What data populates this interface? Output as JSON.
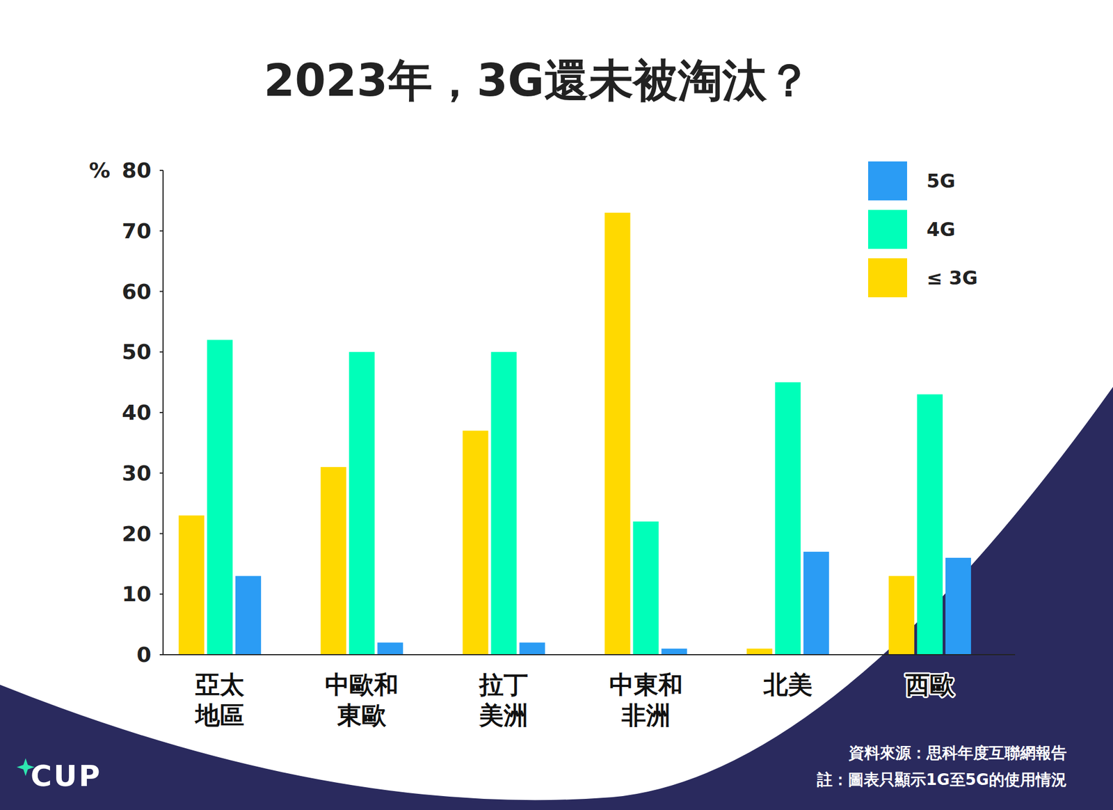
{
  "chart_data": {
    "type": "bar",
    "title": "2023年，3G還未被淘汰？",
    "y_label": "%",
    "categories": [
      "亞太地區",
      "中歐和東歐",
      "拉丁美洲",
      "中東和非洲",
      "北美",
      "西歐"
    ],
    "series": [
      {
        "name": "≤ 3G",
        "color": "#FFD900",
        "values": [
          23,
          31,
          37,
          73,
          1,
          13
        ]
      },
      {
        "name": "4G",
        "color": "#00FFB9",
        "values": [
          52,
          50,
          50,
          22,
          45,
          43
        ]
      },
      {
        "name": "5G",
        "color": "#2B9CF4",
        "values": [
          13,
          2,
          2,
          1,
          17,
          16
        ]
      }
    ],
    "ylim": [
      0,
      80
    ],
    "yticks": [
      0,
      10,
      20,
      30,
      40,
      50,
      60,
      70,
      80
    ],
    "grid": false,
    "legend": "top-right",
    "data_labels": false,
    "annotations": [
      "資料來源：思科年度互聯網報告",
      "註：圖表只顯示1G至5G的使用情況"
    ],
    "logo": "CUP"
  }
}
